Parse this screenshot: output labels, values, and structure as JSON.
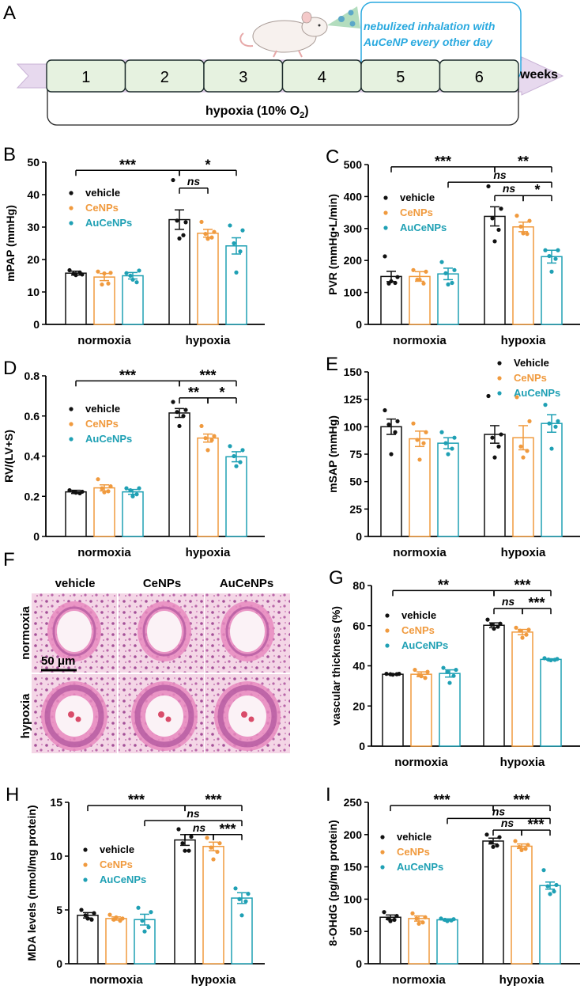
{
  "colors": {
    "vehicle": "#111111",
    "cenps": "#F09A3E",
    "aucenps": "#1FA0B4",
    "weeks_box": "#E6F2E0",
    "arrow": "#E7D9EE",
    "note": "#29A9DF",
    "he_bg": "#F3D3E4",
    "he_dark": "#B45AA0",
    "he_pink": "#E889BE"
  },
  "panel_a": {
    "label": "A",
    "weeks": [
      "1",
      "2",
      "3",
      "4",
      "5",
      "6"
    ],
    "weeks_label": "weeks",
    "hypoxia_label": "hypoxia (10% O",
    "hypoxia_sub": "2",
    "hypoxia_end": ")",
    "note_line1": "nebulized inhalation with",
    "note_line2": "AuCeNP every other day"
  },
  "panel_f": {
    "label": "F",
    "cols": [
      "vehicle",
      "CeNPs",
      "AuCeNPs"
    ],
    "rows": [
      "normoxia",
      "hypoxia"
    ],
    "scale_bar": "50 μm"
  },
  "chart_data": [
    {
      "id": "B",
      "label": "B",
      "type": "bar",
      "ylabel": "mPAP (mmHg)",
      "ylim": [
        0,
        50
      ],
      "yticks": [
        0,
        10,
        20,
        30,
        40,
        50
      ],
      "categories": [
        "normoxia",
        "hypoxia"
      ],
      "legend": [
        "vehicle",
        "CeNPs",
        "AuCeNPs"
      ],
      "series": [
        {
          "name": "vehicle",
          "values": [
            15.8,
            32.3
          ],
          "sem": [
            0.6,
            3.0
          ],
          "points": [
            [
              16.7,
              15.4,
              15.6,
              16.0,
              15.2
            ],
            [
              44.5,
              31.5,
              32.0,
              27.5,
              26.5
            ]
          ]
        },
        {
          "name": "CeNPs",
          "values": [
            14.6,
            28.1
          ],
          "sem": [
            1.1,
            1.2
          ],
          "points": [
            [
              16.3,
              15.9,
              12.3,
              12.6,
              15.7
            ],
            [
              31.6,
              28.5,
              27.9,
              26.8,
              26.4
            ]
          ]
        },
        {
          "name": "AuCeNPs",
          "values": [
            15.0,
            24.2
          ],
          "sem": [
            1.0,
            2.5
          ],
          "points": [
            [
              15.8,
              16.6,
              15.0,
              13.0,
              13.8
            ],
            [
              30.5,
              29.0,
              25.0,
              22.5,
              16.0
            ]
          ]
        }
      ],
      "sig": [
        {
          "text": "***",
          "x1": [
            0,
            0
          ],
          "x2": [
            1,
            0
          ],
          "y": 47.5,
          "drops": true
        },
        {
          "text": "*",
          "x1": [
            1,
            0
          ],
          "x2": [
            1,
            2
          ],
          "y": 47.5,
          "drops": true
        },
        {
          "text": "ns",
          "x1": [
            1,
            0
          ],
          "x2": [
            1,
            1
          ],
          "y": 42.0,
          "drops": true
        }
      ]
    },
    {
      "id": "C",
      "label": "C",
      "type": "bar",
      "ylabel": "PVR (mmHg•L/min)",
      "ylim": [
        0,
        500
      ],
      "yticks": [
        0,
        100,
        200,
        300,
        400,
        500
      ],
      "categories": [
        "normoxia",
        "hypoxia"
      ],
      "legend": [
        "vehicle",
        "CeNPs",
        "AuCeNPs"
      ],
      "series": [
        {
          "name": "vehicle",
          "values": [
            150,
            338
          ],
          "sem": [
            16,
            30
          ],
          "points": [
            [
              213,
              148,
              128,
              130,
              135
            ],
            [
              432,
              362,
              332,
              296,
              260
            ]
          ]
        },
        {
          "name": "CeNPs",
          "values": [
            150,
            305
          ],
          "sem": [
            15,
            15
          ],
          "points": [
            [
              170,
              165,
              140,
              128,
              140
            ],
            [
              340,
              324,
              306,
              283,
              285
            ]
          ]
        },
        {
          "name": "AuCeNPs",
          "values": [
            158,
            212
          ],
          "sem": [
            18,
            20
          ],
          "points": [
            [
              195,
              170,
              160,
              130,
              125
            ],
            [
              232,
              232,
              214,
              205,
              165
            ]
          ]
        }
      ],
      "sig": [
        {
          "text": "***",
          "x1": [
            0,
            0
          ],
          "x2": [
            1,
            0
          ],
          "y": 493,
          "drops": true
        },
        {
          "text": "**",
          "x1": [
            1,
            0
          ],
          "x2": [
            1,
            2
          ],
          "y": 493,
          "drops": true
        },
        {
          "text": "ns",
          "x1": [
            0,
            2
          ],
          "x2": [
            1,
            2
          ],
          "y": 445,
          "drops": true
        },
        {
          "text": "ns",
          "x1": [
            1,
            0
          ],
          "x2": [
            1,
            1
          ],
          "y": 403,
          "drops": true
        },
        {
          "text": "*",
          "x1": [
            1,
            1
          ],
          "x2": [
            1,
            2
          ],
          "y": 403,
          "drops": true
        }
      ]
    },
    {
      "id": "D",
      "label": "D",
      "type": "bar",
      "ylabel": "RV/(LV+S)",
      "ylim": [
        0,
        0.8
      ],
      "yticks": [
        0,
        0.2,
        0.4,
        0.6,
        0.8
      ],
      "categories": [
        "normoxia",
        "hypoxia"
      ],
      "legend": [
        "vehicle",
        "CeNPs",
        "AuCeNPs"
      ],
      "series": [
        {
          "name": "vehicle",
          "values": [
            0.222,
            0.615
          ],
          "sem": [
            0.008,
            0.022
          ],
          "points": [
            [
              0.23,
              0.223,
              0.221,
              0.215,
              0.218
            ],
            [
              0.67,
              0.63,
              0.62,
              0.6,
              0.55
            ]
          ]
        },
        {
          "name": "CeNPs",
          "values": [
            0.242,
            0.49
          ],
          "sem": [
            0.015,
            0.02
          ],
          "points": [
            [
              0.285,
              0.25,
              0.24,
              0.225,
              0.22
            ],
            [
              0.55,
              0.5,
              0.49,
              0.48,
              0.43
            ]
          ]
        },
        {
          "name": "AuCeNPs",
          "values": [
            0.222,
            0.397
          ],
          "sem": [
            0.012,
            0.025
          ],
          "points": [
            [
              0.24,
              0.24,
              0.23,
              0.21,
              0.2
            ],
            [
              0.45,
              0.43,
              0.4,
              0.37,
              0.35
            ]
          ]
        }
      ],
      "sig": [
        {
          "text": "***",
          "x1": [
            0,
            0
          ],
          "x2": [
            1,
            0
          ],
          "y": 0.775,
          "drops": true
        },
        {
          "text": "***",
          "x1": [
            1,
            0
          ],
          "x2": [
            1,
            2
          ],
          "y": 0.775,
          "drops": true
        },
        {
          "text": "**",
          "x1": [
            1,
            0
          ],
          "x2": [
            1,
            1
          ],
          "y": 0.69,
          "drops": true
        },
        {
          "text": "*",
          "x1": [
            1,
            1
          ],
          "x2": [
            1,
            2
          ],
          "y": 0.69,
          "drops": true
        }
      ]
    },
    {
      "id": "E",
      "label": "E",
      "type": "bar",
      "ylabel": "mSAP (mmHg)",
      "ylim": [
        0,
        150
      ],
      "yticks": [
        0,
        25,
        50,
        75,
        100,
        125,
        150
      ],
      "categories": [
        "normoxia",
        "hypoxia"
      ],
      "legend": [
        "Vehicle",
        "CeNPs",
        "AuCeNPs"
      ],
      "series": [
        {
          "name": "Vehicle",
          "values": [
            100,
            93
          ],
          "sem": [
            7,
            8
          ],
          "points": [
            [
              115,
              105,
              102,
              95,
              75
            ],
            [
              128,
              93,
              90,
              82,
              72
            ]
          ]
        },
        {
          "name": "CeNPs",
          "values": [
            89,
            90
          ],
          "sem": [
            7,
            11
          ],
          "points": [
            [
              103,
              95,
              88,
              85,
              70
            ],
            [
              127,
              105,
              82,
              78,
              72
            ]
          ]
        },
        {
          "name": "AuCeNPs",
          "values": [
            85,
            103
          ],
          "sem": [
            5,
            8
          ],
          "points": [
            [
              95,
              90,
              85,
              80,
              75
            ],
            [
              120,
              105,
              103,
              100,
              80
            ]
          ]
        }
      ],
      "sig": []
    },
    {
      "id": "G",
      "label": "G",
      "type": "bar",
      "ylabel": "vascular thickness (%)",
      "ylim": [
        0,
        80
      ],
      "yticks": [
        0,
        20,
        40,
        60,
        80
      ],
      "categories": [
        "normoxia",
        "hypoxia"
      ],
      "legend": [
        "vehicle",
        "CeNPs",
        "AuCeNPs"
      ],
      "series": [
        {
          "name": "vehicle",
          "values": [
            35.8,
            60.2
          ],
          "sem": [
            0.2,
            1.2
          ],
          "points": [
            [
              36,
              36,
              35.8,
              35.8,
              35.6
            ],
            [
              63,
              61,
              60.5,
              59.5,
              58.5
            ]
          ]
        },
        {
          "name": "CeNPs",
          "values": [
            35.8,
            56.8
          ],
          "sem": [
            1.2,
            1.3
          ],
          "points": [
            [
              38,
              37,
              35.5,
              34,
              34.8
            ],
            [
              59,
              58,
              57.5,
              55.5,
              54
            ]
          ]
        },
        {
          "name": "AuCeNPs",
          "values": [
            36.2,
            43.2
          ],
          "sem": [
            1.8,
            0.3
          ],
          "points": [
            [
              39,
              38,
              37,
              35,
              31.5
            ],
            [
              43.8,
              43.4,
              43.1,
              43,
              42.8
            ]
          ]
        }
      ],
      "sig": [
        {
          "text": "**",
          "x1": [
            0,
            0
          ],
          "x2": [
            1,
            0
          ],
          "y": 77.5,
          "drops": true
        },
        {
          "text": "***",
          "x1": [
            1,
            0
          ],
          "x2": [
            1,
            2
          ],
          "y": 77.5,
          "drops": true
        },
        {
          "text": "ns",
          "x1": [
            1,
            0
          ],
          "x2": [
            1,
            1
          ],
          "y": 68.5,
          "drops": true
        },
        {
          "text": "***",
          "x1": [
            1,
            1
          ],
          "x2": [
            1,
            2
          ],
          "y": 68.5,
          "drops": true
        }
      ]
    },
    {
      "id": "H",
      "label": "H",
      "type": "bar",
      "ylabel": "MDA levels (nmol/mg protein)",
      "ylim": [
        0,
        15
      ],
      "yticks": [
        0,
        5,
        10,
        15
      ],
      "categories": [
        "normoxia",
        "hypoxia"
      ],
      "legend": [
        "vehicle",
        "CeNPs",
        "AuCeNPs"
      ],
      "series": [
        {
          "name": "vehicle",
          "values": [
            4.5,
            11.5
          ],
          "sem": [
            0.25,
            0.5
          ],
          "points": [
            [
              5.0,
              4.7,
              4.5,
              4.1,
              4.2
            ],
            [
              12.5,
              11.8,
              11.2,
              10.5,
              10.5
            ]
          ]
        },
        {
          "name": "CeNPs",
          "values": [
            4.2,
            10.9
          ],
          "sem": [
            0.15,
            0.4
          ],
          "points": [
            [
              4.55,
              4.2,
              4.1,
              4.0,
              4.3
            ],
            [
              11.7,
              11.2,
              10.8,
              10.4,
              9.7
            ]
          ]
        },
        {
          "name": "AuCeNPs",
          "values": [
            4.1,
            6.1
          ],
          "sem": [
            0.5,
            0.5
          ],
          "points": [
            [
              5.2,
              4.8,
              4.0,
              3.4,
              3.0
            ],
            [
              7.0,
              6.5,
              6.0,
              5.8,
              4.5
            ]
          ]
        }
      ],
      "sig": [
        {
          "text": "***",
          "x1": [
            0,
            0
          ],
          "x2": [
            1,
            0
          ],
          "y": 14.7,
          "drops": true
        },
        {
          "text": "***",
          "x1": [
            1,
            0
          ],
          "x2": [
            1,
            2
          ],
          "y": 14.7,
          "drops": true
        },
        {
          "text": "ns",
          "x1": [
            0,
            2
          ],
          "x2": [
            1,
            2
          ],
          "y": 13.3,
          "drops": true
        },
        {
          "text": "ns",
          "x1": [
            1,
            0
          ],
          "x2": [
            1,
            1
          ],
          "y": 12.0,
          "drops": true
        },
        {
          "text": "***",
          "x1": [
            1,
            1
          ],
          "x2": [
            1,
            2
          ],
          "y": 12.0,
          "drops": true
        }
      ]
    },
    {
      "id": "I",
      "label": "I",
      "type": "bar",
      "ylabel": "8-OHdG (pg/mg protein)",
      "ylim": [
        0,
        250
      ],
      "yticks": [
        0,
        50,
        100,
        150,
        200,
        250
      ],
      "categories": [
        "normoxia",
        "hypoxia"
      ],
      "legend": [
        "vehicle",
        "CeNPs",
        "AuCeNPs"
      ],
      "series": [
        {
          "name": "vehicle",
          "values": [
            72,
            190
          ],
          "sem": [
            3.5,
            4.5
          ],
          "points": [
            [
              80,
              74,
              70,
              68,
              66
            ],
            [
              200,
              196,
              188,
              183,
              181
            ]
          ]
        },
        {
          "name": "CeNPs",
          "values": [
            70,
            182
          ],
          "sem": [
            4.0,
            3.5
          ],
          "points": [
            [
              78,
              72,
              70,
              64,
              62
            ],
            [
              190,
              184,
              181,
              178,
              176
            ]
          ]
        },
        {
          "name": "AuCeNPs",
          "values": [
            68,
            121
          ],
          "sem": [
            1.5,
            5.5
          ],
          "points": [
            [
              70,
              69,
              68,
              67,
              66
            ],
            [
              145,
              122,
              120,
              112,
              108
            ]
          ]
        }
      ],
      "sig": [
        {
          "text": "***",
          "x1": [
            0,
            0
          ],
          "x2": [
            1,
            0
          ],
          "y": 245,
          "drops": true
        },
        {
          "text": "***",
          "x1": [
            1,
            0
          ],
          "x2": [
            1,
            2
          ],
          "y": 245,
          "drops": true
        },
        {
          "text": "ns",
          "x1": [
            0,
            2
          ],
          "x2": [
            1,
            2
          ],
          "y": 225,
          "drops": true
        },
        {
          "text": "ns",
          "x1": [
            1,
            0
          ],
          "x2": [
            1,
            1
          ],
          "y": 207,
          "drops": true
        },
        {
          "text": "***",
          "x1": [
            1,
            1
          ],
          "x2": [
            1,
            2
          ],
          "y": 207,
          "drops": true
        }
      ]
    }
  ]
}
